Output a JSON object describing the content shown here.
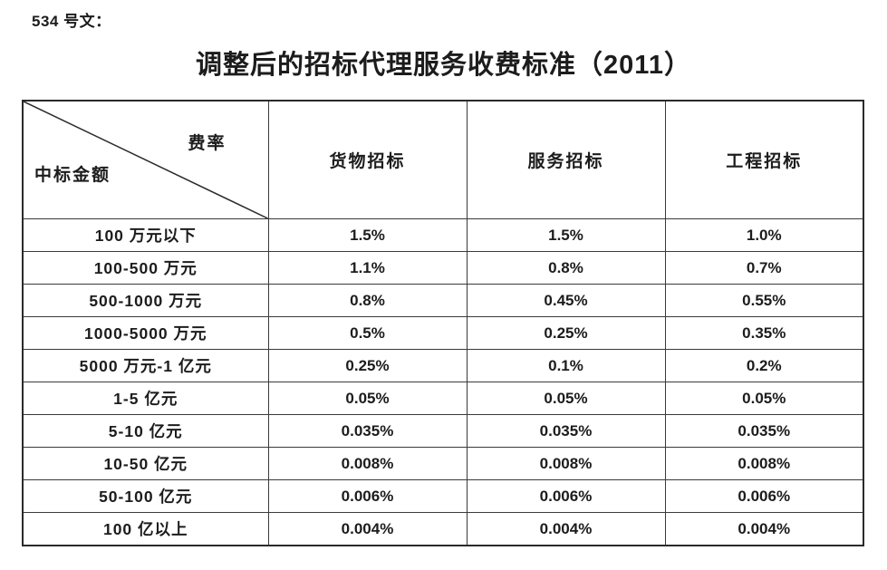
{
  "page": {
    "doc_label": "534 号文：",
    "title": "调整后的招标代理服务收费标准（2011）"
  },
  "table": {
    "corner": {
      "top_right": "费率",
      "bottom_left": "中标金额"
    },
    "columns": [
      "货物招标",
      "服务招标",
      "工程招标"
    ],
    "rows": [
      {
        "label": "100 万元以下",
        "values": [
          "1.5%",
          "1.5%",
          "1.0%"
        ]
      },
      {
        "label": "100-500 万元",
        "values": [
          "1.1%",
          "0.8%",
          "0.7%"
        ]
      },
      {
        "label": "500-1000 万元",
        "values": [
          "0.8%",
          "0.45%",
          "0.55%"
        ]
      },
      {
        "label": "1000-5000 万元",
        "values": [
          "0.5%",
          "0.25%",
          "0.35%"
        ]
      },
      {
        "label": "5000 万元-1 亿元",
        "values": [
          "0.25%",
          "0.1%",
          "0.2%"
        ]
      },
      {
        "label": "1-5 亿元",
        "values": [
          "0.05%",
          "0.05%",
          "0.05%"
        ]
      },
      {
        "label": "5-10 亿元",
        "values": [
          "0.035%",
          "0.035%",
          "0.035%"
        ]
      },
      {
        "label": "10-50 亿元",
        "values": [
          "0.008%",
          "0.008%",
          "0.008%"
        ]
      },
      {
        "label": "50-100 亿元",
        "values": [
          "0.006%",
          "0.006%",
          "0.006%"
        ]
      },
      {
        "label": "100 亿以上",
        "values": [
          "0.004%",
          "0.004%",
          "0.004%"
        ]
      }
    ]
  },
  "colors": {
    "text": "#1c1c1c",
    "border_outer": "#2a2a2a",
    "border_inner": "#3a3a3a",
    "background": "#ffffff"
  }
}
